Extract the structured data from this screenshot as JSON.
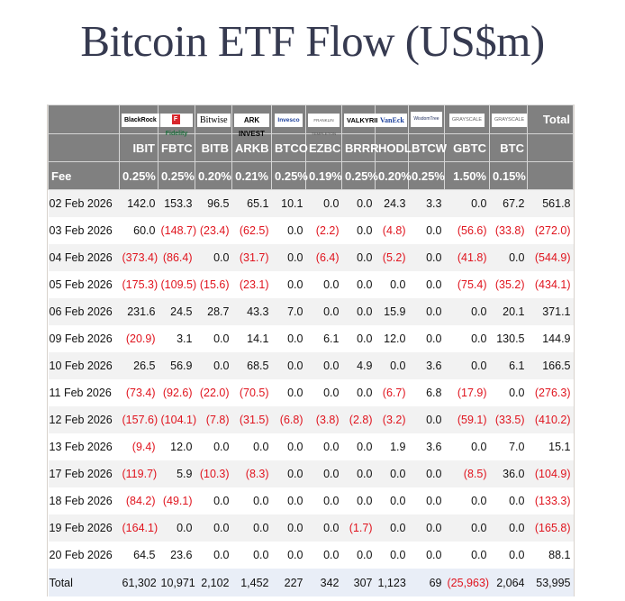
{
  "page": {
    "title": "Bitcoin ETF Flow (US$m)"
  },
  "table": {
    "issuers": [
      {
        "logo": "BlackRock",
        "icon": "blackrock-logo"
      },
      {
        "logo": "Fidelity",
        "icon": "fidelity-logo"
      },
      {
        "logo": "Bitwise",
        "icon": "bitwise-logo"
      },
      {
        "logo": "ARK INVEST",
        "icon": "ark-invest-logo"
      },
      {
        "logo": "Invesco",
        "icon": "invesco-logo"
      },
      {
        "logo": "FRANKLIN TEMPLETON",
        "icon": "franklin-templeton-logo"
      },
      {
        "logo": "VALKYRIE",
        "icon": "valkyrie-logo"
      },
      {
        "logo": "VanEck",
        "icon": "vaneck-logo"
      },
      {
        "logo": "WisdomTree",
        "icon": "wisdomtree-logo"
      },
      {
        "logo": "GRAYSCALE",
        "icon": "grayscale-logo"
      },
      {
        "logo": "GRAYSCALE",
        "icon": "grayscale-logo"
      }
    ],
    "total_header": "Total",
    "tickers": [
      "IBIT",
      "FBTC",
      "BITB",
      "ARKB",
      "BTCO",
      "EZBC",
      "BRRR",
      "HODL",
      "BTCW",
      "GBTC",
      "BTC"
    ],
    "fee_label": "Fee",
    "fees": [
      "0.25%",
      "0.25%",
      "0.20%",
      "0.21%",
      "0.25%",
      "0.19%",
      "0.25%",
      "0.20%",
      "0.25%",
      "1.50%",
      "0.15%"
    ],
    "rows": [
      {
        "date": "02 Feb 2026",
        "values": [
          "142.0",
          "153.3",
          "96.5",
          "65.1",
          "10.1",
          "0.0",
          "0.0",
          "24.3",
          "3.3",
          "0.0",
          "67.2",
          "561.8"
        ]
      },
      {
        "date": "03 Feb 2026",
        "values": [
          "60.0",
          "(148.7)",
          "(23.4)",
          "(62.5)",
          "0.0",
          "(2.2)",
          "0.0",
          "(4.8)",
          "0.0",
          "(56.6)",
          "(33.8)",
          "(272.0)"
        ]
      },
      {
        "date": "04 Feb 2026",
        "values": [
          "(373.4)",
          "(86.4)",
          "0.0",
          "(31.7)",
          "0.0",
          "(6.4)",
          "0.0",
          "(5.2)",
          "0.0",
          "(41.8)",
          "0.0",
          "(544.9)"
        ]
      },
      {
        "date": "05 Feb 2026",
        "values": [
          "(175.3)",
          "(109.5)",
          "(15.6)",
          "(23.1)",
          "0.0",
          "0.0",
          "0.0",
          "0.0",
          "0.0",
          "(75.4)",
          "(35.2)",
          "(434.1)"
        ]
      },
      {
        "date": "06 Feb 2026",
        "values": [
          "231.6",
          "24.5",
          "28.7",
          "43.3",
          "7.0",
          "0.0",
          "0.0",
          "15.9",
          "0.0",
          "0.0",
          "20.1",
          "371.1"
        ]
      },
      {
        "date": "09 Feb 2026",
        "values": [
          "(20.9)",
          "3.1",
          "0.0",
          "14.1",
          "0.0",
          "6.1",
          "0.0",
          "12.0",
          "0.0",
          "0.0",
          "130.5",
          "144.9"
        ]
      },
      {
        "date": "10 Feb 2026",
        "values": [
          "26.5",
          "56.9",
          "0.0",
          "68.5",
          "0.0",
          "0.0",
          "4.9",
          "0.0",
          "3.6",
          "0.0",
          "6.1",
          "166.5"
        ]
      },
      {
        "date": "11 Feb 2026",
        "values": [
          "(73.4)",
          "(92.6)",
          "(22.0)",
          "(70.5)",
          "0.0",
          "0.0",
          "0.0",
          "(6.7)",
          "6.8",
          "(17.9)",
          "0.0",
          "(276.3)"
        ]
      },
      {
        "date": "12 Feb 2026",
        "values": [
          "(157.6)",
          "(104.1)",
          "(7.8)",
          "(31.5)",
          "(6.8)",
          "(3.8)",
          "(2.8)",
          "(3.2)",
          "0.0",
          "(59.1)",
          "(33.5)",
          "(410.2)"
        ]
      },
      {
        "date": "13 Feb 2026",
        "values": [
          "(9.4)",
          "12.0",
          "0.0",
          "0.0",
          "0.0",
          "0.0",
          "0.0",
          "1.9",
          "3.6",
          "0.0",
          "7.0",
          "15.1"
        ]
      },
      {
        "date": "17 Feb 2026",
        "values": [
          "(119.7)",
          "5.9",
          "(10.3)",
          "(8.3)",
          "0.0",
          "0.0",
          "0.0",
          "0.0",
          "0.0",
          "(8.5)",
          "36.0",
          "(104.9)"
        ]
      },
      {
        "date": "18 Feb 2026",
        "values": [
          "(84.2)",
          "(49.1)",
          "0.0",
          "0.0",
          "0.0",
          "0.0",
          "0.0",
          "0.0",
          "0.0",
          "0.0",
          "0.0",
          "(133.3)"
        ]
      },
      {
        "date": "19 Feb 2026",
        "values": [
          "(164.1)",
          "0.0",
          "0.0",
          "0.0",
          "0.0",
          "0.0",
          "(1.7)",
          "0.0",
          "0.0",
          "0.0",
          "0.0",
          "(165.8)"
        ]
      },
      {
        "date": "20 Feb 2026",
        "values": [
          "64.5",
          "23.6",
          "0.0",
          "0.0",
          "0.0",
          "0.0",
          "0.0",
          "0.0",
          "0.0",
          "0.0",
          "0.0",
          "88.1"
        ]
      }
    ],
    "total_row": {
      "label": "Total",
      "values": [
        "61,302",
        "10,971",
        "2,102",
        "1,452",
        "227",
        "342",
        "307",
        "1,123",
        "69",
        "(25,963)",
        "2,064",
        "53,995"
      ]
    }
  },
  "colors": {
    "header_bg": "#808080",
    "header_text": "#ffffff",
    "negative": "#e0141e",
    "row_alt": "#f2f2f2",
    "total_row_bg": "#e9eef7",
    "title": "#363a50"
  }
}
